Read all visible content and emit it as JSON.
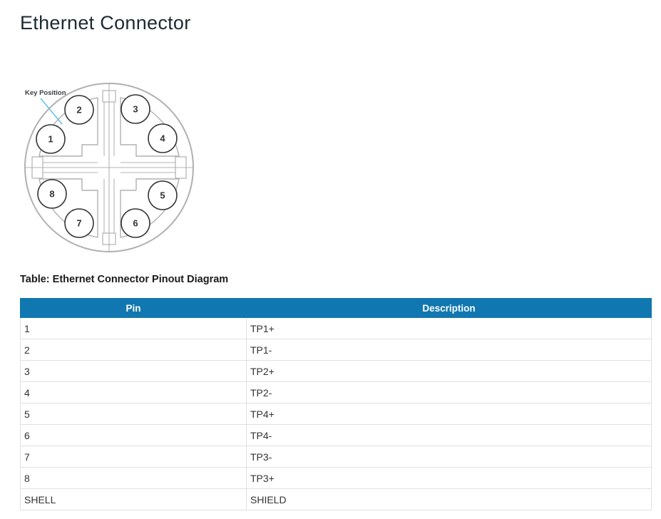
{
  "page": {
    "title": "Ethernet Connector"
  },
  "diagram": {
    "key_position_label": "Key Position",
    "pins": [
      "1",
      "2",
      "3",
      "4",
      "5",
      "6",
      "7",
      "8"
    ]
  },
  "table": {
    "caption": "Table: Ethernet Connector Pinout Diagram",
    "columns": [
      "Pin",
      "Description"
    ],
    "rows": [
      [
        "1",
        "TP1+"
      ],
      [
        "2",
        "TP1-"
      ],
      [
        "3",
        "TP2+"
      ],
      [
        "4",
        "TP2-"
      ],
      [
        "5",
        "TP4+"
      ],
      [
        "6",
        "TP4-"
      ],
      [
        "7",
        "TP3-"
      ],
      [
        "8",
        "TP3+"
      ],
      [
        "SHELL",
        "SHIELD"
      ]
    ]
  },
  "colors": {
    "table_header_bg": "#1177b0",
    "table_header_text": "#ffffff",
    "connector_outline": "#b0b0b0",
    "pin_outline": "#333333",
    "key_pointer_line": "#62c0e8",
    "title_text": "#1d2a32"
  }
}
